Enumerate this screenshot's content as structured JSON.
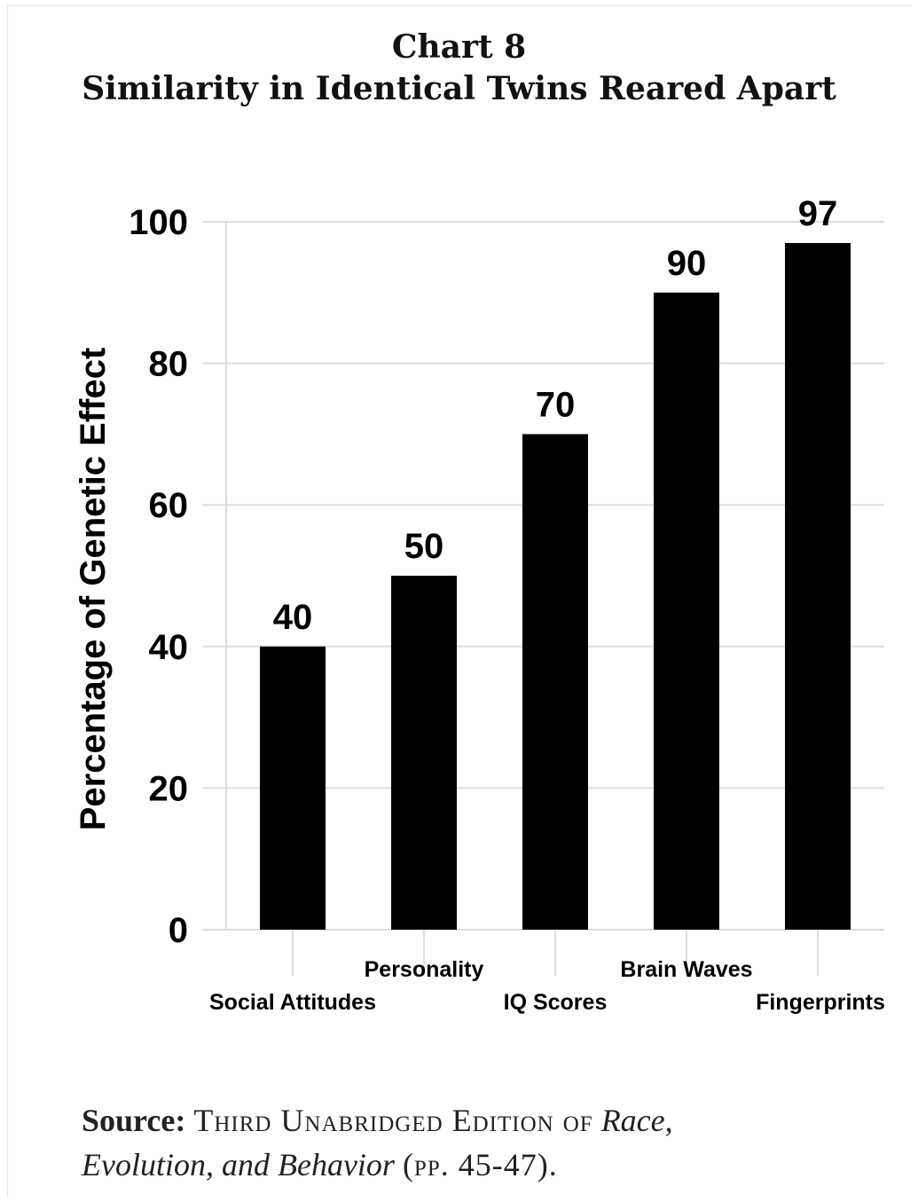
{
  "page": {
    "title_line1": "Chart 8",
    "title_line2": "Similarity in Identical Twins Reared Apart"
  },
  "source": {
    "label": "Source:",
    "part1": "Third Unabridged Edition of",
    "italic1": "Race,",
    "italic2": "Evolution, and Behavior",
    "part2": "(pp. 45-47)."
  },
  "chart_data": {
    "type": "bar",
    "title": "Chart 8",
    "subtitle": "Similarity in Identical Twins Reared Apart",
    "xlabel": "",
    "ylabel": "Percentage of Genetic Effect",
    "categories": [
      "Social Attitudes",
      "Personality",
      "IQ Scores",
      "Brain Waves",
      "Fingerprints"
    ],
    "values": [
      40,
      50,
      70,
      90,
      97
    ],
    "data_labels": [
      "40",
      "50",
      "70",
      "90",
      "97"
    ],
    "ylim": [
      0,
      100
    ],
    "yticks": [
      0,
      20,
      40,
      60,
      80,
      100
    ],
    "ytick_labels": [
      "0",
      "20",
      "40",
      "60",
      "80",
      "100"
    ],
    "grid": true,
    "bar_color": "#000000",
    "grid_color": "#dddddd"
  }
}
